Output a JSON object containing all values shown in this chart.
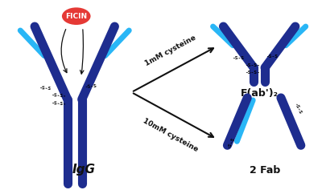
{
  "background_color": "#ffffff",
  "dark_blue": "#1e2d8f",
  "light_blue": "#29b6f6",
  "red_fill": "#e53935",
  "black": "#111111",
  "ficin_text": "FICIN",
  "igg_text": "IgG",
  "fab2_text": "F(ab')₂",
  "fab_text": "2 Fab",
  "arrow1_text": "1mM cysteine",
  "arrow2_text": "10mM cysteine"
}
